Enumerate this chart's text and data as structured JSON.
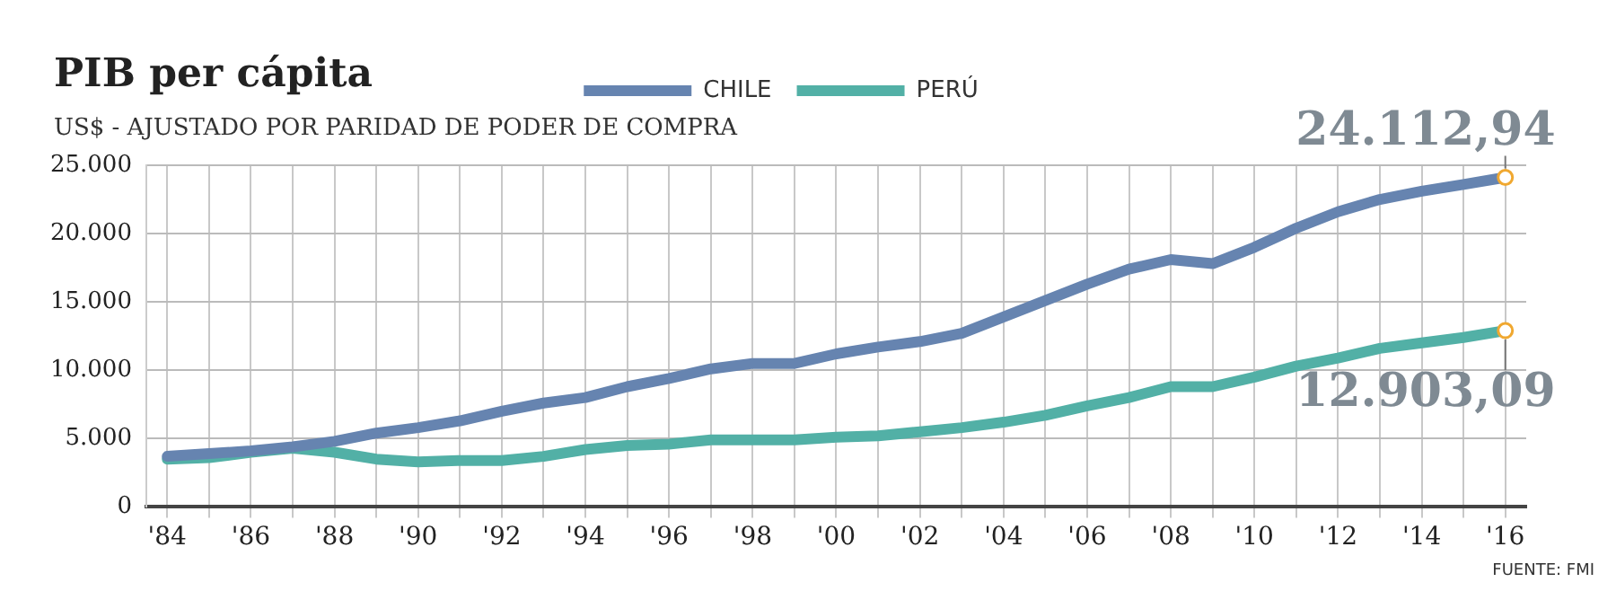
{
  "chart_data": {
    "type": "line",
    "title": "PIB per cápita",
    "subtitle": "US$  - AJUSTADO POR PARIDAD DE PODER DE COMPRA",
    "categories": [
      "'84",
      null,
      "'86",
      null,
      "'88",
      null,
      "'90",
      null,
      "'92",
      null,
      "'94",
      null,
      "'96",
      null,
      "'98",
      null,
      "'00",
      null,
      "'02",
      null,
      "'04",
      null,
      "'06",
      null,
      "'08",
      null,
      "'10",
      null,
      "'12",
      null,
      "'14",
      null,
      "'16"
    ],
    "series": [
      {
        "name": "CHILE",
        "color": "#6684b0",
        "values": [
          3700,
          3900,
          4100,
          4400,
          4800,
          5400,
          5800,
          6300,
          7000,
          7600,
          8000,
          8800,
          9400,
          10100,
          10500,
          10500,
          11200,
          11700,
          12100,
          12700,
          13900,
          15100,
          16300,
          17400,
          18100,
          17800,
          19000,
          20400,
          21600,
          22500,
          23100,
          23600,
          24112.94
        ]
      },
      {
        "name": "PERÚ",
        "color": "#52b0a6",
        "values": [
          3500,
          3600,
          4000,
          4300,
          4000,
          3500,
          3300,
          3400,
          3400,
          3700,
          4200,
          4500,
          4600,
          4900,
          4900,
          4900,
          5100,
          5200,
          5500,
          5800,
          6200,
          6700,
          7400,
          8000,
          8800,
          8800,
          9500,
          10300,
          10900,
          11600,
          12000,
          12400,
          12903.09
        ]
      }
    ],
    "ylim": [
      0,
      25000
    ],
    "yticks": [
      0,
      {
        "value": 5000,
        "label": "5.000"
      },
      {
        "value": 10000,
        "label": "10.000"
      },
      {
        "value": 15000,
        "label": "15.000"
      },
      {
        "value": 20000,
        "label": "20.000"
      },
      {
        "value": 25000,
        "label": "25.000"
      }
    ],
    "grid": true,
    "legend": "top",
    "marker": "none",
    "line_style": "solid",
    "annotations": [
      {
        "text": "24.112,94",
        "x": "'16",
        "y": 24112.94
      },
      {
        "text": "12.903,09",
        "x": "'16",
        "y": 12903.09
      },
      "FUENTE: FMI"
    ]
  }
}
